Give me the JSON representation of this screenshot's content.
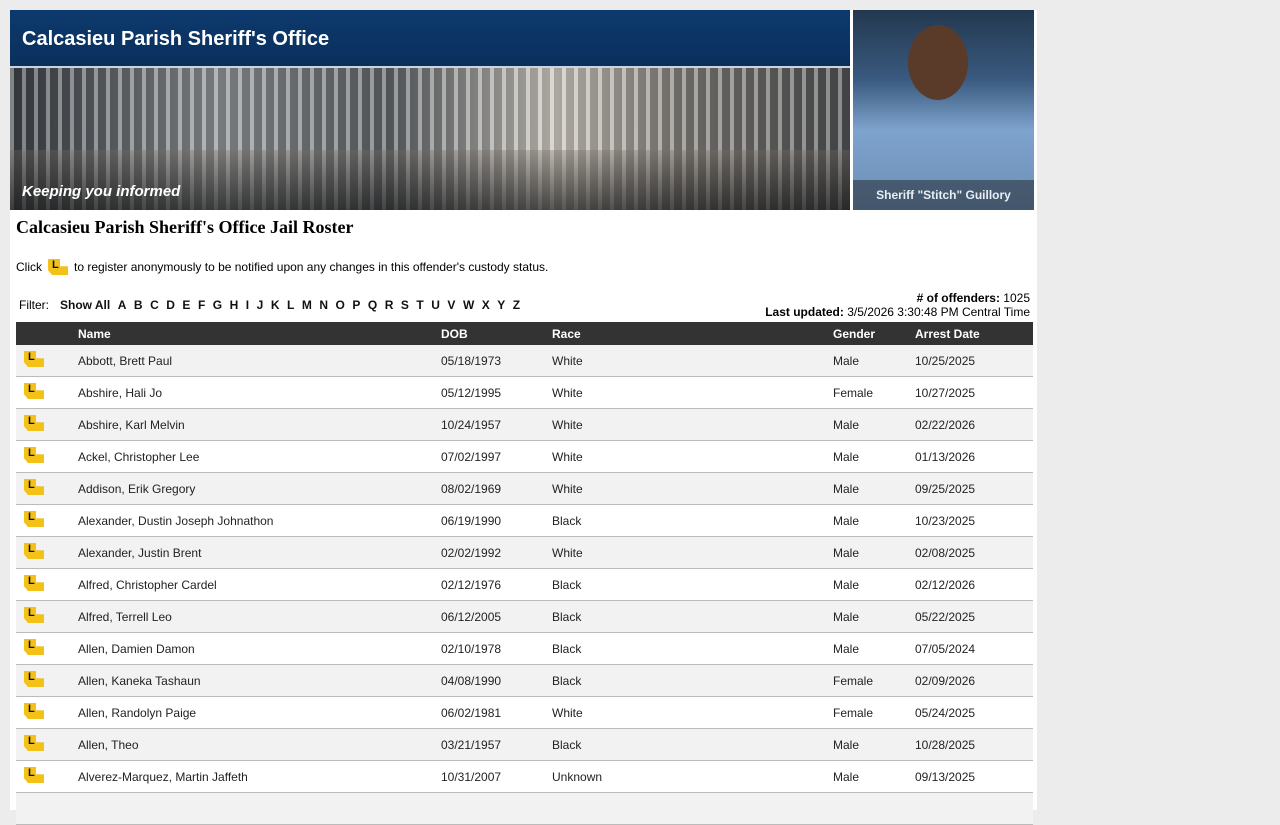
{
  "header": {
    "title": "Calcasieu Parish Sheriff's Office",
    "tagline": "Keeping you informed",
    "sheriff_caption": "Sheriff \"Stitch\" Guillory"
  },
  "page_title": "Calcasieu Parish Sheriff's Office  Jail Roster",
  "note": {
    "prefix": "Click",
    "suffix": "to register anonymously to be notified upon any changes in this offender's custody status.",
    "icon": "louisiana-notify-icon"
  },
  "filter": {
    "label": "Filter:",
    "show_all": "Show All",
    "letters": [
      "A",
      "B",
      "C",
      "D",
      "E",
      "F",
      "G",
      "H",
      "I",
      "J",
      "K",
      "L",
      "M",
      "N",
      "O",
      "P",
      "Q",
      "R",
      "S",
      "T",
      "U",
      "V",
      "W",
      "X",
      "Y",
      "Z"
    ]
  },
  "stats": {
    "count_label": "# of offenders:",
    "count": "1025",
    "updated_label": "Last updated:",
    "updated": "3/5/2026 3:30:48 PM Central Time"
  },
  "table": {
    "columns": [
      "",
      "Name",
      "DOB",
      "Race",
      "Gender",
      "Arrest Date"
    ],
    "rows": [
      [
        "Abbott, Brett Paul",
        "05/18/1973",
        "White",
        "Male",
        "10/25/2025"
      ],
      [
        "Abshire, Hali Jo",
        "05/12/1995",
        "White",
        "Female",
        "10/27/2025"
      ],
      [
        "Abshire, Karl Melvin",
        "10/24/1957",
        "White",
        "Male",
        "02/22/2026"
      ],
      [
        "Ackel, Christopher Lee",
        "07/02/1997",
        "White",
        "Male",
        "01/13/2026"
      ],
      [
        "Addison, Erik Gregory",
        "08/02/1969",
        "White",
        "Male",
        "09/25/2025"
      ],
      [
        "Alexander, Dustin Joseph Johnathon",
        "06/19/1990",
        "Black",
        "Male",
        "10/23/2025"
      ],
      [
        "Alexander, Justin Brent",
        "02/02/1992",
        "White",
        "Male",
        "02/08/2025"
      ],
      [
        "Alfred, Christopher Cardel",
        "02/12/1976",
        "Black",
        "Male",
        "02/12/2026"
      ],
      [
        "Alfred, Terrell Leo",
        "06/12/2005",
        "Black",
        "Male",
        "05/22/2025"
      ],
      [
        "Allen, Damien Damon",
        "02/10/1978",
        "Black",
        "Male",
        "07/05/2024"
      ],
      [
        "Allen, Kaneka Tashaun",
        "04/08/1990",
        "Black",
        "Female",
        "02/09/2026"
      ],
      [
        "Allen, Randolyn Paige",
        "06/02/1981",
        "White",
        "Female",
        "05/24/2025"
      ],
      [
        "Allen, Theo",
        "03/21/1957",
        "Black",
        "Male",
        "10/28/2025"
      ],
      [
        "Alverez-Marquez, Martin Jaffeth",
        "10/31/2007",
        "Unknown",
        "Male",
        "09/13/2025"
      ],
      [
        "",
        "",
        "",
        "",
        ""
      ]
    ]
  }
}
